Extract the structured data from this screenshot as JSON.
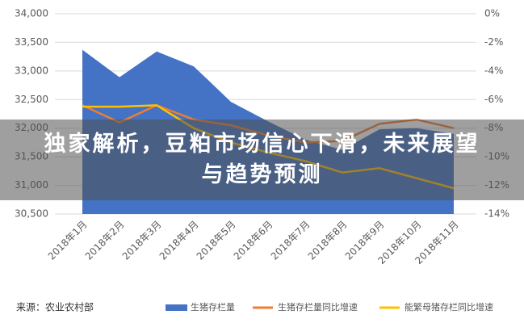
{
  "chart_data": {
    "type": "area-line",
    "categories": [
      "2018年1月",
      "2018年2月",
      "2018年3月",
      "2018年4月",
      "2018年5月",
      "2018年6月",
      "2018年7月",
      "2018年8月",
      "2018年9月",
      "2018年10月",
      "2018年11月"
    ],
    "series": [
      {
        "name": "生猪存栏量",
        "color": "#4472c4",
        "kind": "area",
        "values": [
          33370,
          32890,
          33340,
          33080,
          32460,
          32120,
          31800,
          31620,
          31980,
          32000,
          31900
        ]
      },
      {
        "name": "生猪存栏量同比增速",
        "color": "#ed7d31",
        "kind": "line",
        "axis": "y2",
        "values": [
          -6.4,
          -7.6,
          -6.4,
          -7.4,
          -7.8,
          -8.5,
          -9.0,
          -8.9,
          -7.7,
          -7.4,
          -8.0
        ]
      },
      {
        "name": "能繁母猪存栏同比增速",
        "color": "#ffc000",
        "kind": "line",
        "axis": "y2",
        "values": [
          -6.5,
          -6.5,
          -6.4,
          -8.0,
          -9.0,
          -9.7,
          -10.3,
          -11.1,
          -10.8,
          -11.5,
          -12.2
        ]
      }
    ],
    "ylim": [
      30500,
      34000
    ],
    "yticks": [
      {
        "value": 30500,
        "label": "30,500"
      },
      {
        "value": 31000,
        "label": "31,000"
      },
      {
        "value": 31500,
        "label": "31,500"
      },
      {
        "value": 32000,
        "label": "32,000"
      },
      {
        "value": 32500,
        "label": "32,500"
      },
      {
        "value": 33000,
        "label": "33,000"
      },
      {
        "value": 33500,
        "label": "33,500"
      },
      {
        "value": 34000,
        "label": "34,000"
      }
    ],
    "y2lim": [
      -14,
      0
    ],
    "y2ticks": [
      {
        "value": 0,
        "label": "0%"
      },
      {
        "value": -2,
        "label": "-2%"
      },
      {
        "value": -4,
        "label": "-4%"
      },
      {
        "value": -6,
        "label": "-6%"
      },
      {
        "value": -8,
        "label": "-8%"
      },
      {
        "value": -10,
        "label": "-10%"
      },
      {
        "value": -12,
        "label": "-12%"
      },
      {
        "value": -14,
        "label": "-14%"
      }
    ],
    "grid": true,
    "source": "来源：农业农村部",
    "overlay_title_lines": [
      "独家解析，豆粕市场信心下滑，未来展望",
      "与趋势预测"
    ]
  }
}
